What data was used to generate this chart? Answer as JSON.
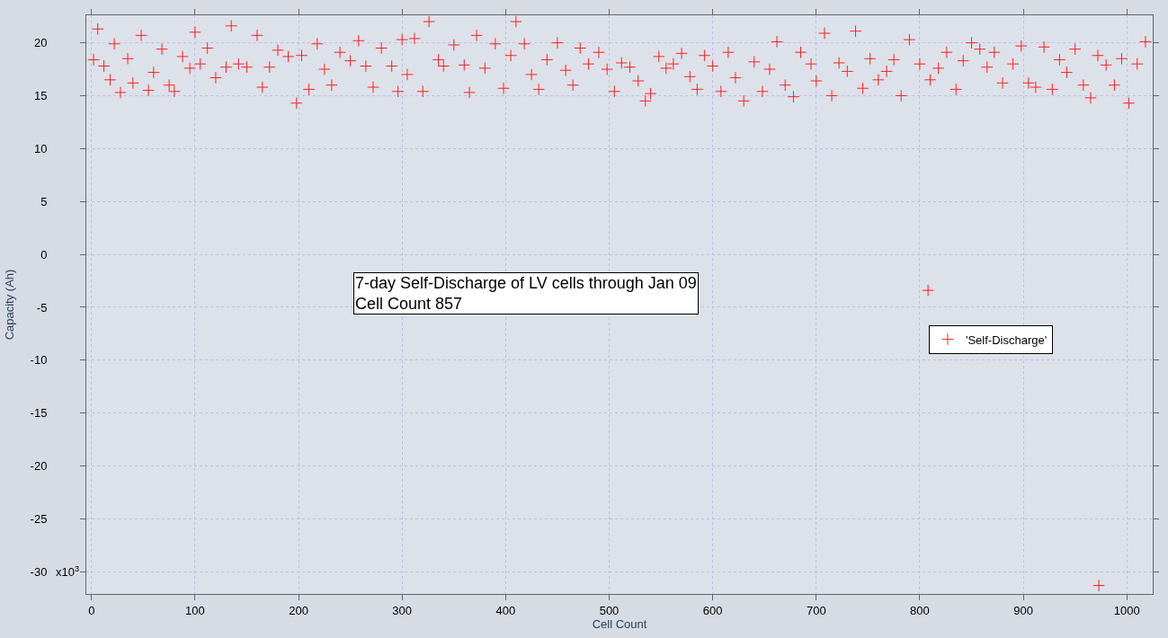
{
  "chart_data": {
    "type": "scatter",
    "xlabel": "Cell Count",
    "ylabel": "Capacity (Ah)",
    "annotations": [
      "7-day Self-Discharge of LV cells through Jan 09\nCell Count 857",
      "x10$^{3}$"
    ],
    "xlim": [
      -5,
      1025
    ],
    "xticks": [
      0,
      100,
      200,
      300,
      400,
      500,
      600,
      700,
      800,
      900,
      1000
    ],
    "ylim": [
      -32.1,
      22.6
    ],
    "yticks": [
      20,
      15,
      10,
      5,
      0,
      -5,
      -10,
      -15,
      -20,
      -25,
      -30
    ],
    "grid": true,
    "legend": "right",
    "marker": "cross",
    "series": [
      {
        "name": "'Self-Discharge'",
        "color": "#ff2020",
        "x": [
          2,
          6,
          12,
          18,
          22,
          28,
          35,
          40,
          48,
          55,
          60,
          68,
          75,
          80,
          88,
          95,
          100,
          105,
          112,
          120,
          130,
          135,
          142,
          150,
          160,
          165,
          172,
          180,
          190,
          198,
          203,
          210,
          218,
          225,
          232,
          240,
          250,
          258,
          265,
          272,
          280,
          290,
          296,
          300,
          305,
          312,
          320,
          326,
          335,
          340,
          350,
          360,
          365,
          372,
          380,
          390,
          398,
          405,
          410,
          418,
          425,
          432,
          440,
          450,
          458,
          465,
          472,
          480,
          490,
          498,
          505,
          512,
          520,
          528,
          535,
          540,
          548,
          555,
          562,
          570,
          578,
          585,
          592,
          600,
          608,
          615,
          622,
          630,
          640,
          648,
          655,
          662,
          670,
          678,
          685,
          695,
          700,
          708,
          715,
          722,
          730,
          738,
          745,
          752,
          760,
          768,
          775,
          782,
          790,
          800,
          808,
          810,
          818,
          826,
          835,
          842,
          850,
          858,
          865,
          872,
          880,
          890,
          898,
          905,
          912,
          920,
          928,
          935,
          942,
          950,
          958,
          965,
          972,
          973,
          980,
          988,
          995,
          1002,
          1010,
          1018
        ],
        "values": [
          18.4,
          21.3,
          17.8,
          16.5,
          19.9,
          15.3,
          18.5,
          16.2,
          20.7,
          15.5,
          17.2,
          19.4,
          16.0,
          15.4,
          18.7,
          17.6,
          21.0,
          18.0,
          19.5,
          16.7,
          17.7,
          21.6,
          18.0,
          17.7,
          20.7,
          15.8,
          17.7,
          19.3,
          18.7,
          14.3,
          18.8,
          15.6,
          19.9,
          17.5,
          16.0,
          19.1,
          18.3,
          20.2,
          17.8,
          15.8,
          19.5,
          17.8,
          15.4,
          20.3,
          17.0,
          20.4,
          15.4,
          22.0,
          18.4,
          17.8,
          19.8,
          17.9,
          15.3,
          20.7,
          17.6,
          19.9,
          15.7,
          18.8,
          22.0,
          19.9,
          17.0,
          15.6,
          18.4,
          20.0,
          17.4,
          16.0,
          19.5,
          18.0,
          19.1,
          17.5,
          15.4,
          18.1,
          17.7,
          16.4,
          14.5,
          15.2,
          18.7,
          17.6,
          18.0,
          19.0,
          16.8,
          15.6,
          18.8,
          17.8,
          15.4,
          19.1,
          16.7,
          14.5,
          18.2,
          15.4,
          17.5,
          20.1,
          16.0,
          14.9,
          19.1,
          18.0,
          16.4,
          20.9,
          15.0,
          18.1,
          17.3,
          21.1,
          15.7,
          18.5,
          16.5,
          17.3,
          18.4,
          15.0,
          20.3,
          18.0,
          -3.4,
          16.5,
          17.6,
          19.1,
          15.6,
          18.3,
          20.0,
          19.4,
          17.7,
          19.1,
          16.2,
          18.0,
          19.7,
          16.2,
          15.8,
          19.6,
          15.6,
          18.4,
          17.2,
          19.4,
          16.0,
          14.8,
          18.8,
          -31.3,
          17.9,
          16.0,
          18.5,
          14.3,
          18.0,
          20.1
        ]
      }
    ]
  }
}
